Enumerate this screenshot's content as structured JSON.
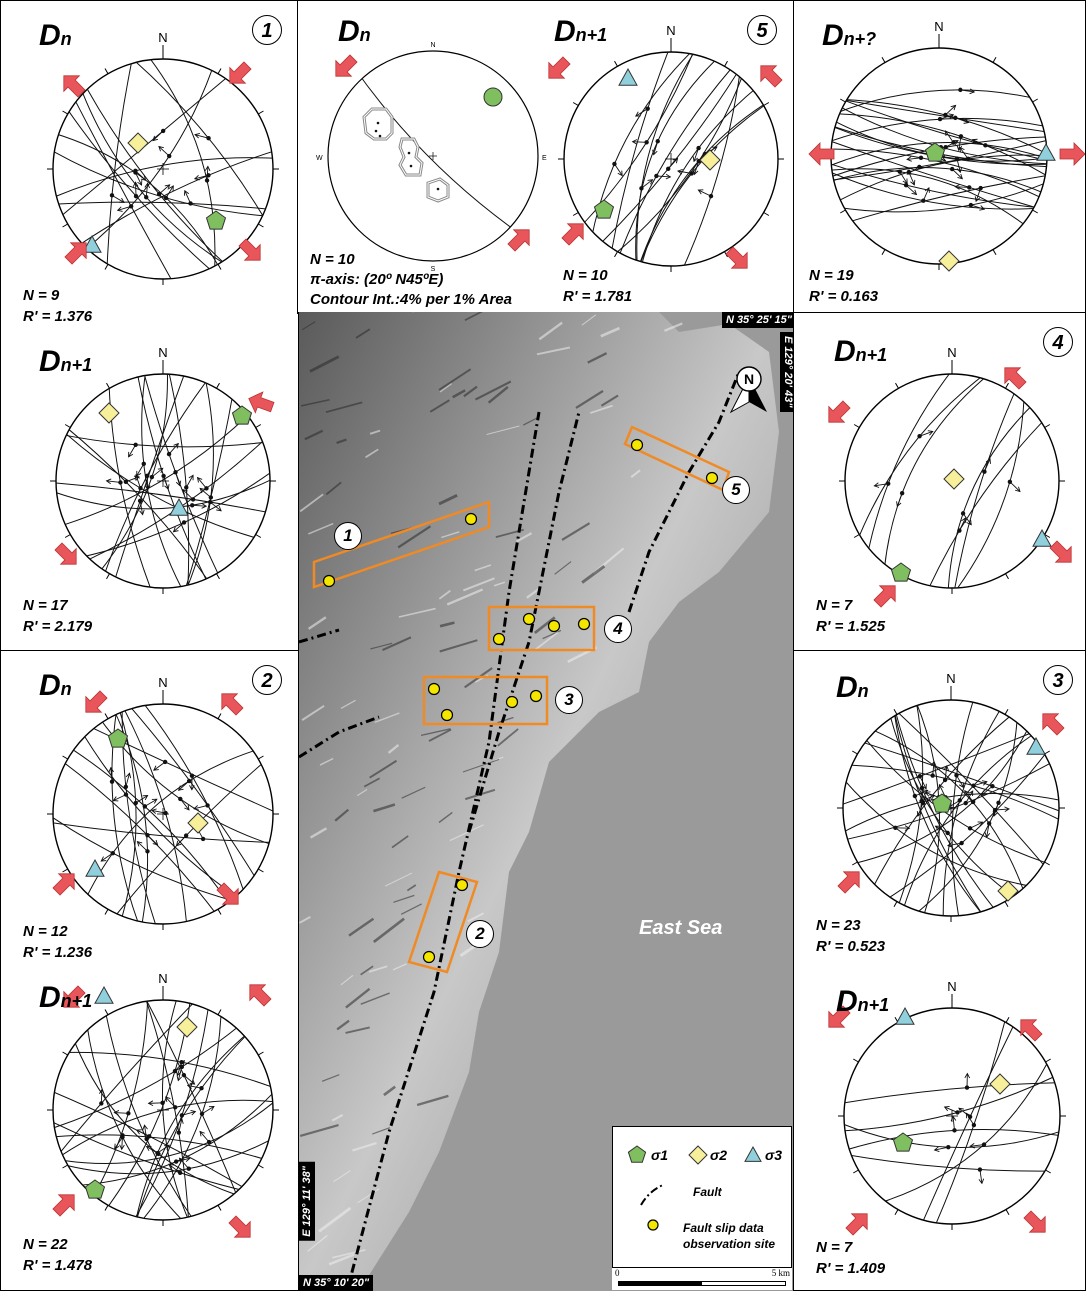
{
  "panels": {
    "p1a": {
      "title": "D",
      "sub": "n",
      "circle": "1",
      "stats": [
        "N = 9",
        "R' = 1.376"
      ],
      "north": "N"
    },
    "p1b": {
      "title": "D",
      "sub": "n+1",
      "stats": [
        "N = 17",
        "R' = 2.179"
      ],
      "north": "N"
    },
    "p2a": {
      "title": "D",
      "sub": "n",
      "circle": "2",
      "stats": [
        "N = 12",
        "R' = 1.236"
      ],
      "north": "N"
    },
    "p2b": {
      "title": "D",
      "sub": "n+1",
      "stats": [
        "N = 22",
        "R' = 1.478"
      ],
      "north": "N"
    },
    "ptop": {
      "title": "D",
      "sub": "n",
      "stats": [
        "N = 10",
        "π-axis: (20º N45ºE)",
        "Contour Int.:4% per 1% Area"
      ],
      "north": "N",
      "south": "S",
      "east": "E",
      "west": "W"
    },
    "p5": {
      "title": "D",
      "sub": "n+1",
      "circle": "5",
      "stats": [
        "N = 10",
        "R' = 1.781"
      ],
      "north": "N"
    },
    "pq": {
      "title": "D",
      "sub": "n+?",
      "stats": [
        "N = 19",
        "R' = 0.163"
      ],
      "north": "N"
    },
    "p4": {
      "title": "D",
      "sub": "n+1",
      "circle": "4",
      "stats": [
        "N = 7",
        "R' = 1.525"
      ],
      "north": "N"
    },
    "p3a": {
      "title": "D",
      "sub": "n",
      "circle": "3",
      "stats": [
        "N = 23",
        "R' = 0.523"
      ],
      "north": "N"
    },
    "p3b": {
      "title": "D",
      "sub": "n+1",
      "stats": [
        "N = 7",
        "R' = 1.409"
      ],
      "north": "N"
    }
  },
  "map": {
    "coord_top": "N 35° 25' 15\"",
    "coord_right": "E 129° 20' 43\"",
    "coord_left": "E 129° 11' 38\"",
    "coord_bottom": "N 35° 10' 20\"",
    "north": "N",
    "sea_label": "East Sea",
    "sites": [
      "1",
      "2",
      "3",
      "4",
      "5"
    ]
  },
  "legend": {
    "s1": "σ1",
    "s2": "σ2",
    "s3": "σ3",
    "fault": "Fault",
    "site1": "Fault slip data",
    "site2": "observation site"
  },
  "scale": {
    "start": "0",
    "end": "5 km"
  },
  "colors": {
    "sigma1": "#7fbf5f",
    "sigma2": "#f7ef9a",
    "sigma3": "#8fd0dc",
    "arrow": "#e8555a",
    "site": "#f5e600",
    "box": "#f08a24",
    "sea": "#9a9a9a"
  }
}
